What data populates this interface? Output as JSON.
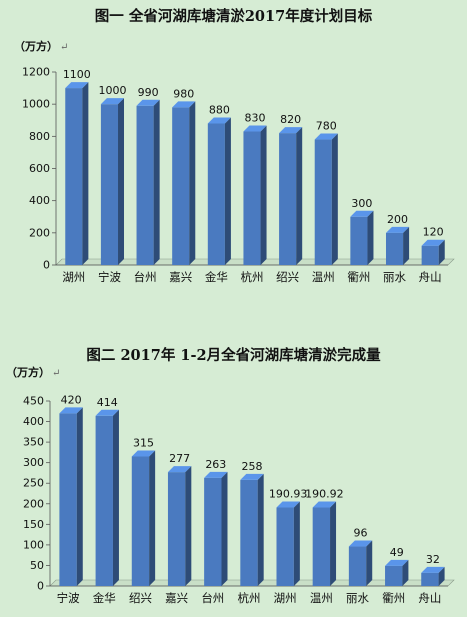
{
  "chart_data": [
    {
      "type": "bar",
      "title": "图一  全省河湖库塘清淤2017年度计划目标",
      "unit": "（万方）",
      "categories": [
        "湖州",
        "宁波",
        "台州",
        "嘉兴",
        "金华",
        "杭州",
        "绍兴",
        "温州",
        "衢州",
        "丽水",
        "舟山"
      ],
      "values": [
        1100,
        1000,
        990,
        980,
        880,
        830,
        820,
        780,
        300,
        200,
        120
      ],
      "value_labels": [
        "1100",
        "1000",
        "990",
        "980",
        "880",
        "830",
        "820",
        "780",
        "300",
        "200",
        "120"
      ],
      "ylim": [
        0,
        1200
      ],
      "yticks": [
        0,
        200,
        400,
        600,
        800,
        1000,
        1200
      ],
      "grid": false,
      "bar_color": "#4a7ac0"
    },
    {
      "type": "bar",
      "title": "图二  2017年 1-2月全省河湖库塘清淤完成量",
      "unit": "（万方）",
      "categories": [
        "宁波",
        "金华",
        "绍兴",
        "嘉兴",
        "台州",
        "杭州",
        "湖州",
        "温州",
        "丽水",
        "衢州",
        "舟山"
      ],
      "values": [
        420,
        414,
        315,
        277,
        263,
        258,
        190.93,
        190.92,
        96,
        49,
        32
      ],
      "value_labels": [
        "420",
        "414",
        "315",
        "277",
        "263",
        "258",
        "190.93",
        "190.92",
        "96",
        "49",
        "32"
      ],
      "ylim": [
        0,
        450
      ],
      "yticks": [
        0,
        50,
        100,
        150,
        200,
        250,
        300,
        350,
        400,
        450
      ],
      "grid": false,
      "bar_color": "#4a7ac0"
    }
  ]
}
